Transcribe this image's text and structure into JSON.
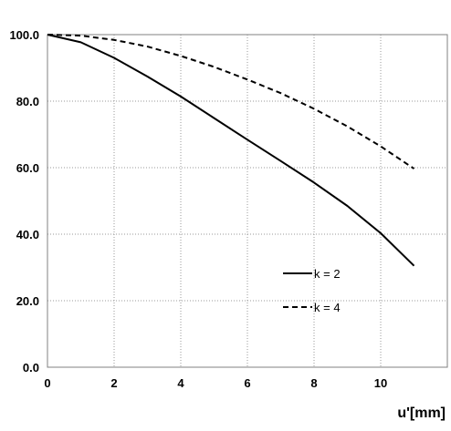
{
  "chart_data": {
    "type": "line",
    "title": "",
    "xlabel": "u'[mm]",
    "ylabel": "",
    "xlim": [
      0,
      12
    ],
    "ylim": [
      0,
      100
    ],
    "x_ticks": [
      "0",
      "2",
      "4",
      "6",
      "8",
      "10"
    ],
    "y_ticks": [
      "0.0",
      "20.0",
      "40.0",
      "60.0",
      "80.0",
      "100.0"
    ],
    "grid": true,
    "legend_position": "bottom-right",
    "series": [
      {
        "name": "k = 2",
        "style": "solid",
        "color": "#000000",
        "x": [
          0,
          1,
          2,
          3,
          4,
          5,
          6,
          7,
          8,
          9,
          10,
          11
        ],
        "y": [
          100,
          97.7,
          93,
          87.4,
          81.4,
          74.9,
          68.4,
          62,
          55.5,
          48.5,
          40.3,
          30.5
        ]
      },
      {
        "name": "k = 4",
        "style": "dashed",
        "color": "#000000",
        "x": [
          0,
          1,
          2,
          3,
          4,
          5,
          6,
          7,
          8,
          9,
          10,
          11
        ],
        "y": [
          100,
          99.7,
          98.4,
          96.4,
          93.6,
          90.3,
          86.5,
          82.4,
          77.7,
          72.4,
          66.4,
          59.7
        ]
      }
    ]
  }
}
